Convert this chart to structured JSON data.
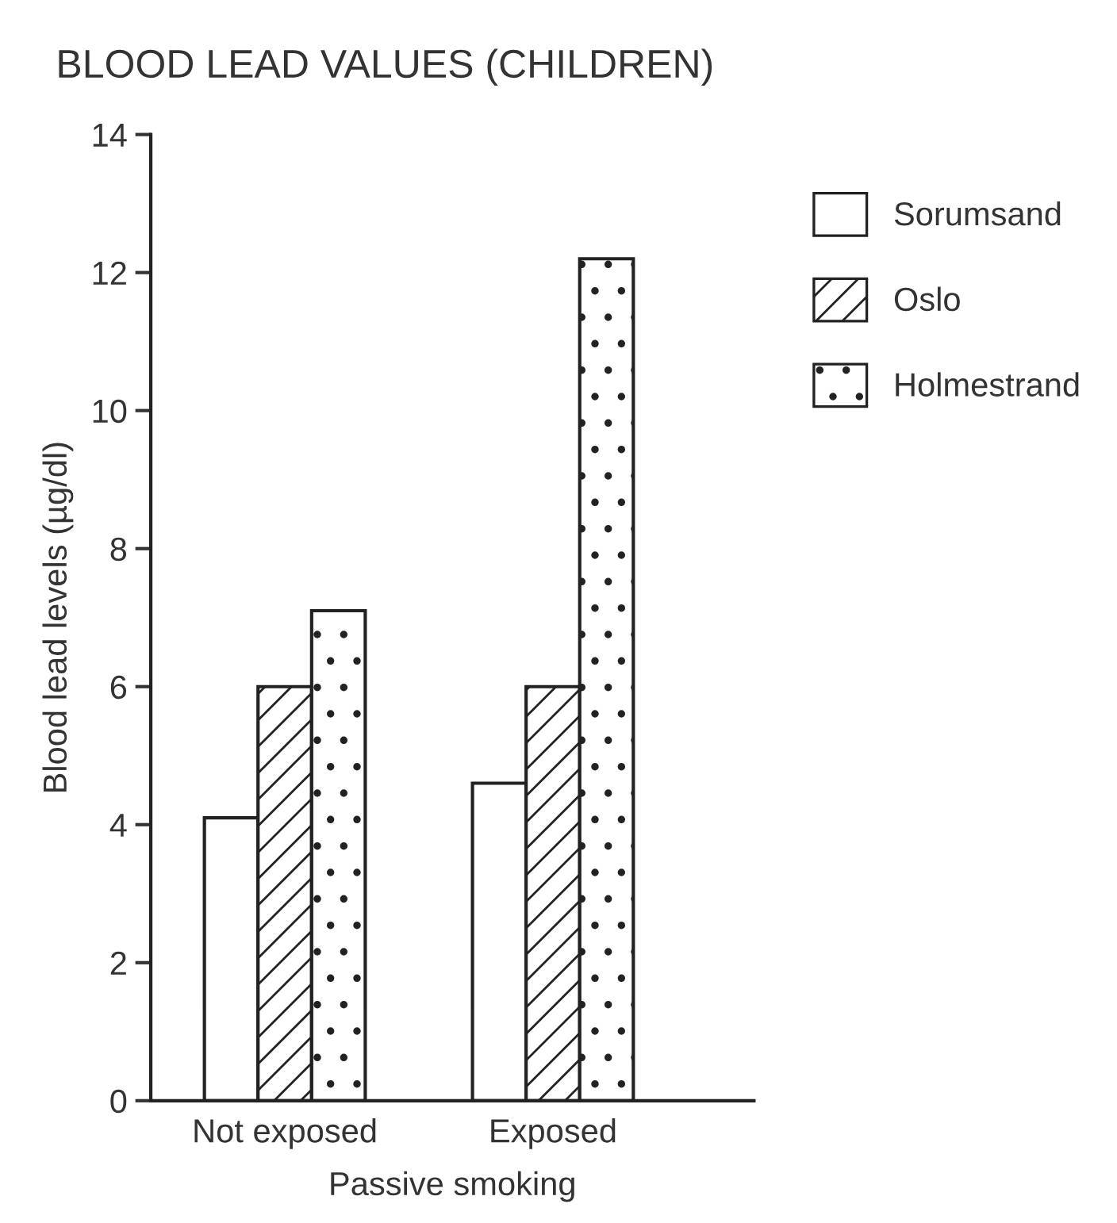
{
  "chart_data": {
    "type": "bar",
    "title": "BLOOD LEAD VALUES (CHILDREN)",
    "xlabel": "Passive smoking",
    "ylabel": "Blood lead levels (µg/dl)",
    "categories": [
      "Not exposed",
      "Exposed"
    ],
    "series": [
      {
        "name": "Sorumsand",
        "color": "#ffffff",
        "values": [
          4.1,
          4.6
        ]
      },
      {
        "name": "Oslo",
        "color": "#222222",
        "values": [
          6.0,
          6.0
        ]
      },
      {
        "name": "Holmestrand",
        "color": "#222222",
        "values": [
          7.1,
          12.2
        ]
      }
    ],
    "ylim": [
      0,
      14
    ],
    "yticks": [
      0,
      2,
      4,
      6,
      8,
      10,
      12,
      14
    ],
    "grid": false,
    "legend": "top right"
  }
}
